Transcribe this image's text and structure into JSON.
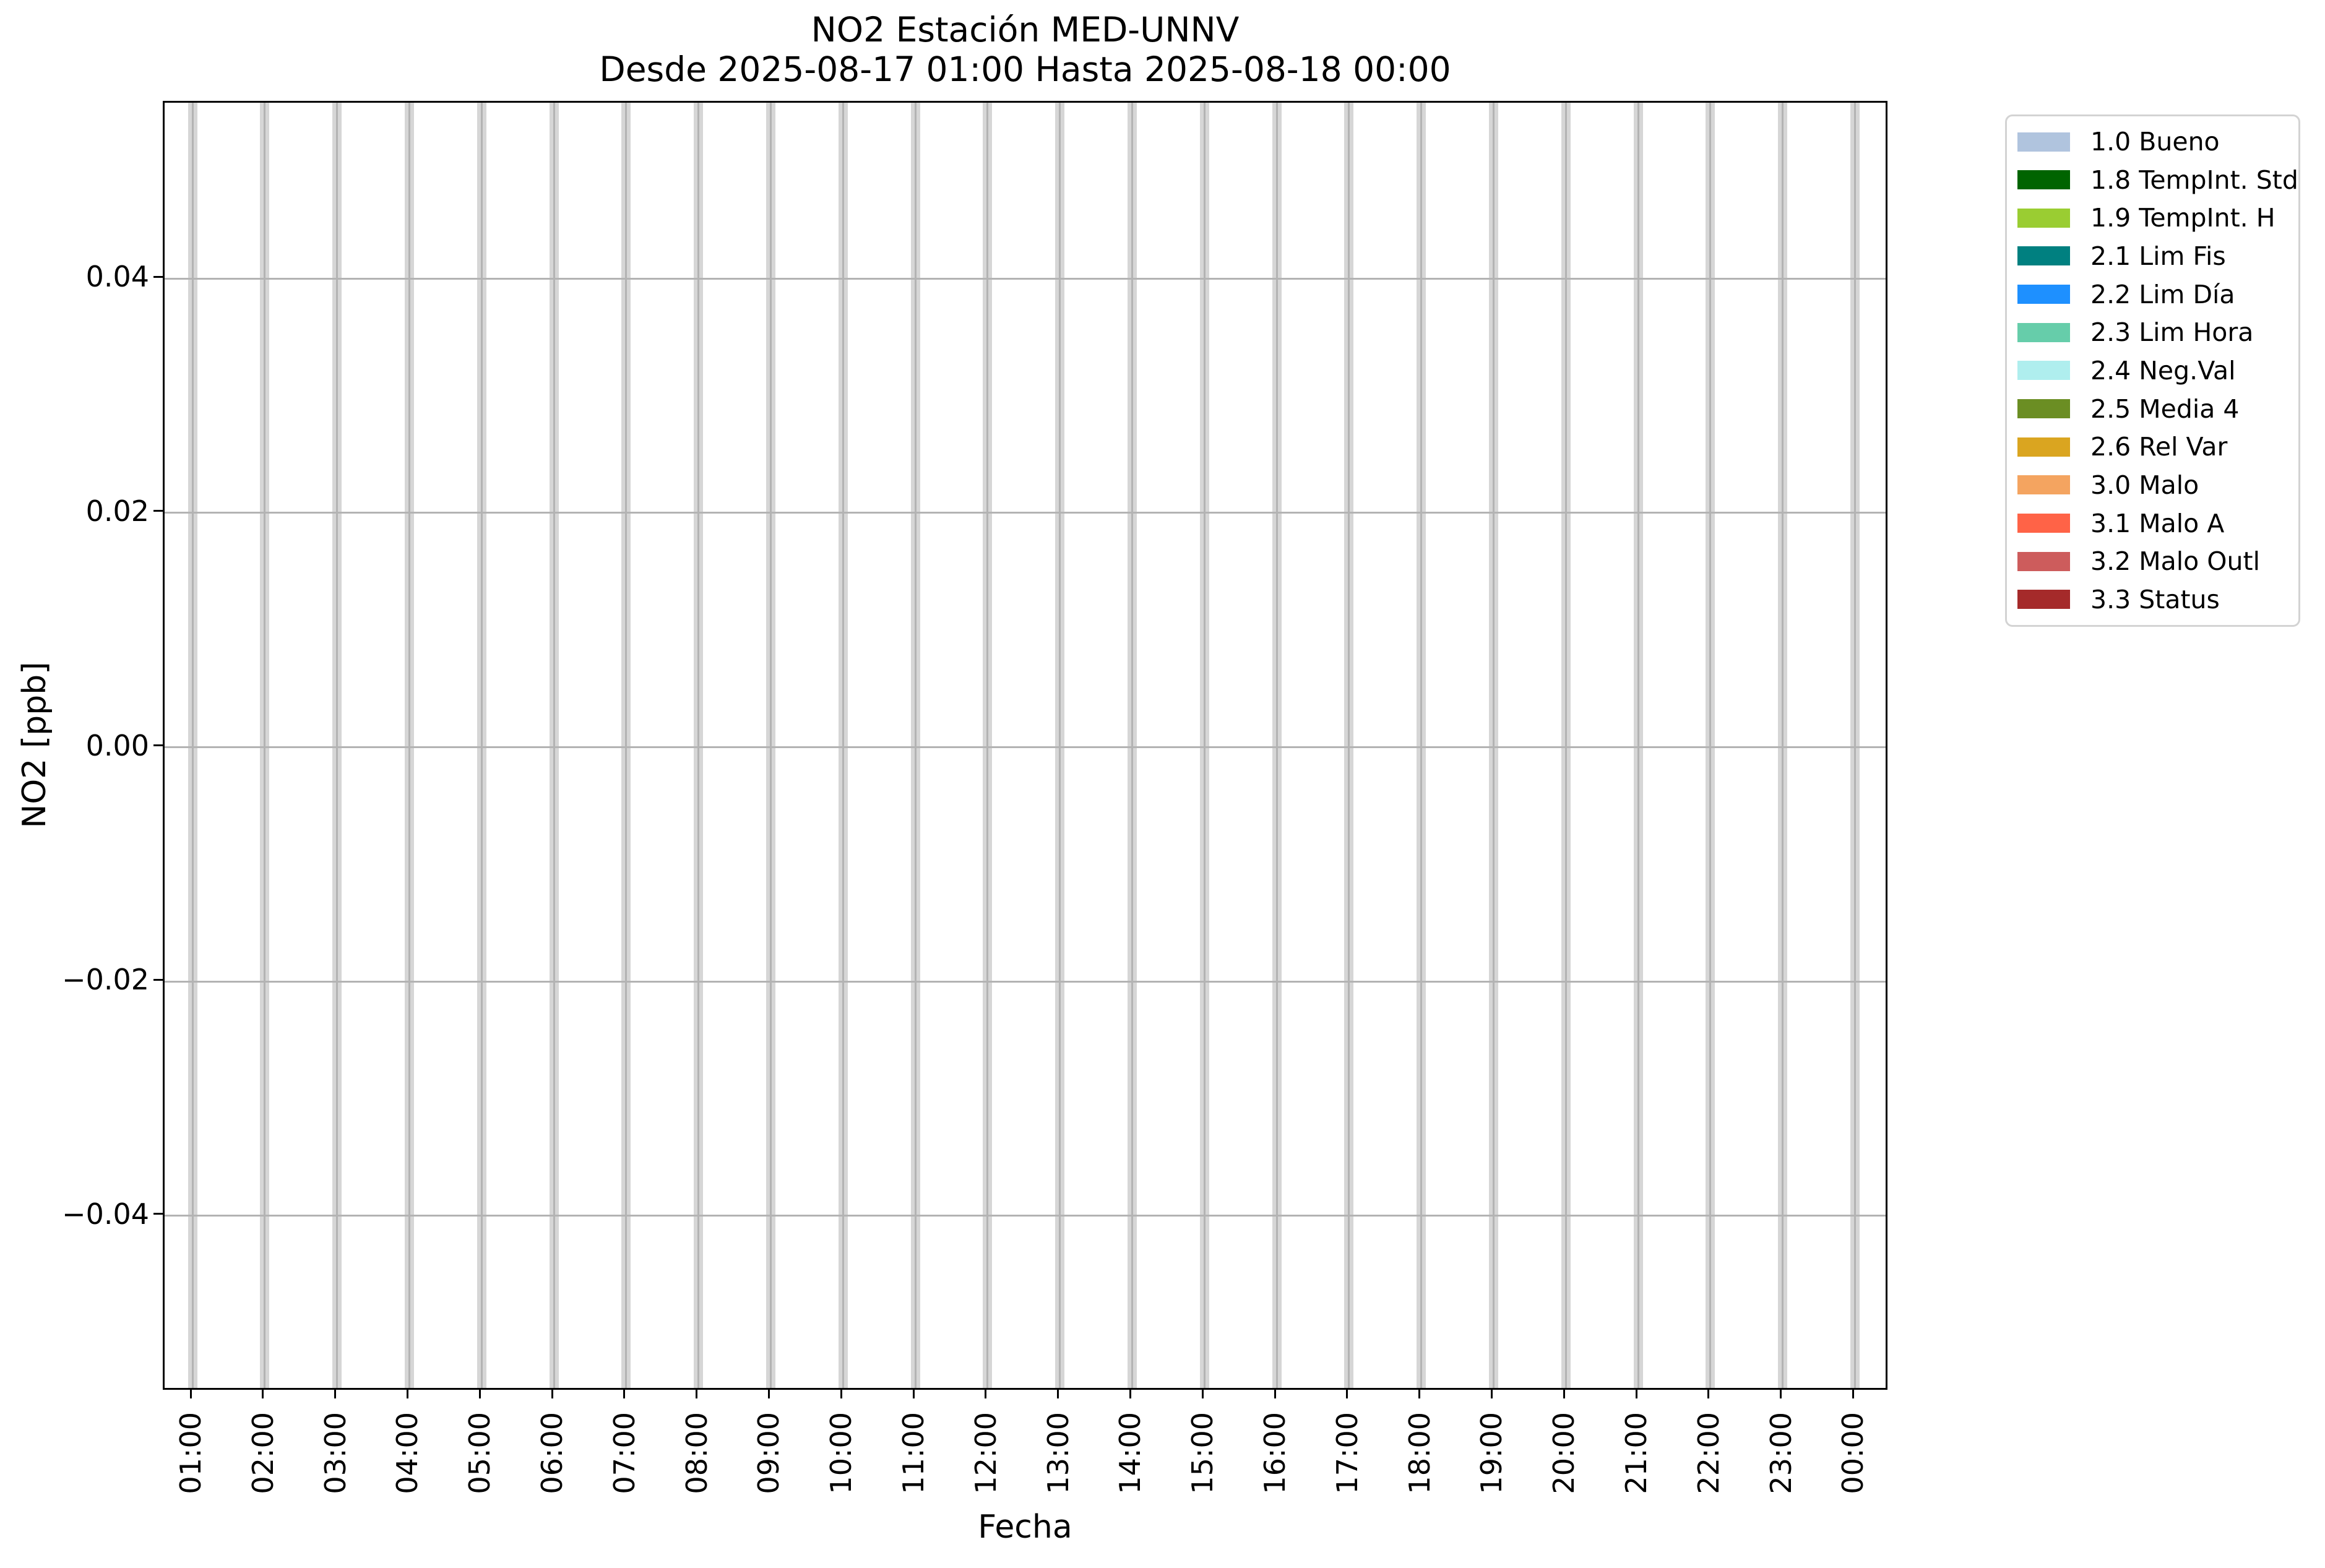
{
  "figure": {
    "title_line1": "NO2 Estación MED-UNNV",
    "title_line2": "Desde 2025-08-17 01:00 Hasta 2025-08-18 00:00",
    "x_axis_label": "Fecha",
    "y_axis_label": "NO2 [ppb]"
  },
  "chart_data": {
    "type": "bar",
    "title": "NO2 Estación MED-UNNV",
    "subtitle": "Desde 2025-08-17 01:00 Hasta 2025-08-18 00:00",
    "xlabel": "Fecha",
    "ylabel": "NO2 [ppb]",
    "categories": [
      "01:00",
      "02:00",
      "03:00",
      "04:00",
      "05:00",
      "06:00",
      "07:00",
      "08:00",
      "09:00",
      "10:00",
      "11:00",
      "12:00",
      "13:00",
      "14:00",
      "15:00",
      "16:00",
      "17:00",
      "18:00",
      "19:00",
      "20:00",
      "21:00",
      "22:00",
      "23:00",
      "00:00"
    ],
    "values": [],
    "ylim": [
      -0.055,
      0.055
    ],
    "y_ticks": [
      {
        "value": 0.04,
        "label": "0.04"
      },
      {
        "value": 0.02,
        "label": "0.02"
      },
      {
        "value": 0.0,
        "label": "0.00"
      },
      {
        "value": -0.02,
        "label": "−0.02"
      },
      {
        "value": -0.04,
        "label": "−0.04"
      }
    ],
    "grid": "on",
    "legend_position": "outside upper right",
    "legend": [
      {
        "label": "1.0 Bueno",
        "color": "#b0c4de"
      },
      {
        "label": "1.8 TempInt. Std",
        "color": "#006400"
      },
      {
        "label": "1.9 TempInt. H",
        "color": "#9acd32"
      },
      {
        "label": "2.1 Lim Fis",
        "color": "#008080"
      },
      {
        "label": "2.2 Lim Día",
        "color": "#1e90ff"
      },
      {
        "label": "2.3 Lim Hora",
        "color": "#66cdaa"
      },
      {
        "label": "2.4 Neg.Val",
        "color": "#afeeee"
      },
      {
        "label": "2.5 Media 4",
        "color": "#6b8e23"
      },
      {
        "label": "2.6 Rel Var",
        "color": "#daa520"
      },
      {
        "label": "3.0 Malo",
        "color": "#f4a460"
      },
      {
        "label": "3.1 Malo A",
        "color": "#ff6347"
      },
      {
        "label": "3.2 Malo Outl",
        "color": "#cd5c5c"
      },
      {
        "label": "3.3 Status",
        "color": "#a52a2a"
      }
    ]
  },
  "style": {
    "background": "#ffffff",
    "band_color": "#d6d6d6",
    "grid_color": "#b3b3b3",
    "spine_color": "#000000",
    "legend_border_color": "#d3d3d3"
  }
}
